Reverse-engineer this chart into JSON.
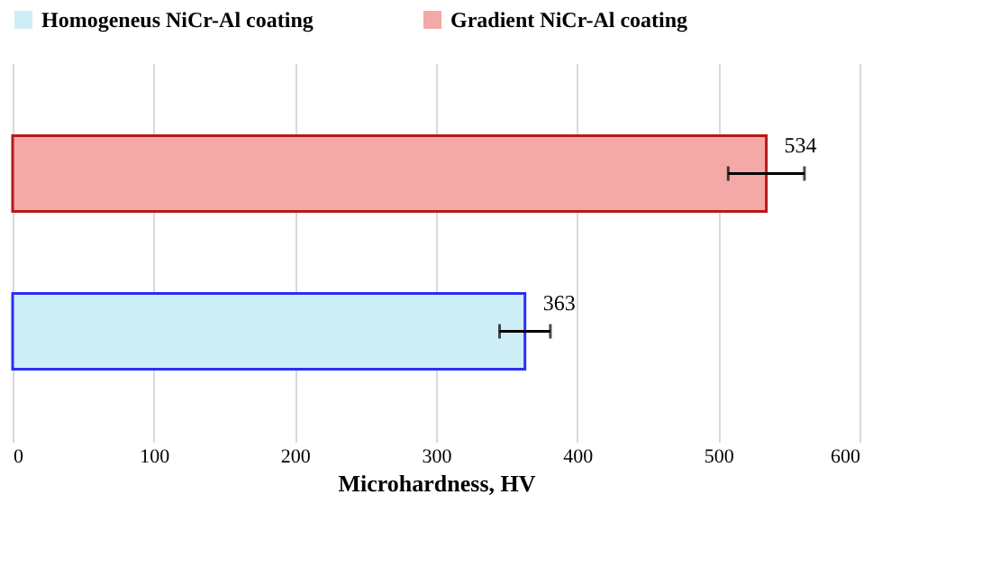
{
  "chart_data": {
    "type": "bar",
    "orientation": "horizontal",
    "xlabel": "Microhardness,  HV",
    "categories": [
      null,
      null
    ],
    "series": [
      {
        "name": "Homogeneus NiCr-Al coating",
        "color": "#cdeef7",
        "values": [
          null,
          363
        ],
        "errors": [
          null,
          18
        ]
      },
      {
        "name": "Gradient NiCr-Al coating",
        "color": "#f5a8a8",
        "values": [
          534,
          null
        ],
        "errors": [
          27,
          null
        ]
      }
    ],
    "xlim": [
      0,
      600
    ],
    "xticks": [
      0,
      100,
      200,
      300,
      400,
      500,
      600
    ],
    "grid": "x",
    "legend": "top",
    "data_labels": true
  }
}
